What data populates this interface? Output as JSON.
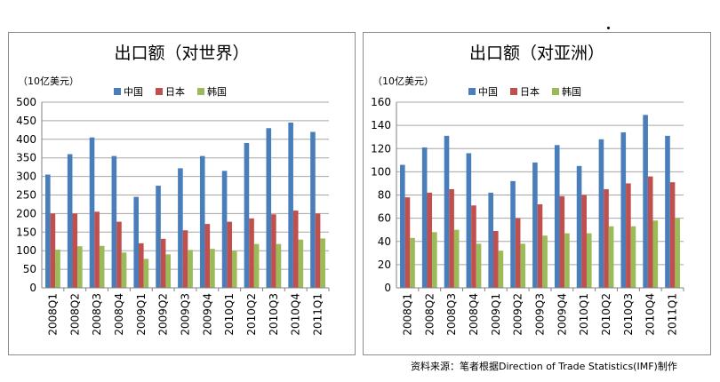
{
  "colors": {
    "china": "#4a7ebb",
    "japan": "#c0504d",
    "korea": "#9bbb59"
  },
  "legend": [
    "中国",
    "日本",
    "韩国"
  ],
  "unit": "（10亿美元）",
  "source": "资料来源：笔者根据Direction of Trade Statistics(IMF)制作",
  "chart_data": [
    {
      "type": "bar",
      "title": "出口额（对世界）",
      "categories": [
        "2008Q1",
        "2008Q2",
        "2008Q3",
        "2008Q4",
        "2009Q1",
        "2009Q2",
        "2009Q3",
        "2009Q4",
        "2010Q1",
        "2010Q2",
        "2010Q3",
        "2010Q4",
        "2011Q1"
      ],
      "ylim": [
        0,
        500
      ],
      "yticks": [
        0,
        50,
        100,
        150,
        200,
        250,
        300,
        350,
        400,
        450,
        500
      ],
      "grid": true,
      "legend_position": "top",
      "series": [
        {
          "name": "中国",
          "values": [
            305,
            360,
            405,
            355,
            245,
            275,
            322,
            355,
            315,
            390,
            430,
            445,
            420
          ]
        },
        {
          "name": "日本",
          "values": [
            200,
            200,
            205,
            178,
            120,
            132,
            155,
            172,
            178,
            187,
            198,
            208,
            200
          ]
        },
        {
          "name": "韩国",
          "values": [
            103,
            112,
            113,
            95,
            78,
            90,
            102,
            105,
            100,
            118,
            118,
            130,
            133
          ]
        }
      ]
    },
    {
      "type": "bar",
      "title": "出口额（对亚洲）",
      "categories": [
        "2008Q1",
        "2008Q2",
        "2008Q3",
        "2008Q4",
        "2009Q1",
        "2009Q2",
        "2009Q3",
        "2009Q4",
        "2010Q1",
        "2010Q2",
        "2010Q3",
        "2010Q4",
        "2011Q1"
      ],
      "ylim": [
        0,
        160
      ],
      "yticks": [
        0,
        20,
        40,
        60,
        80,
        100,
        120,
        140,
        160
      ],
      "grid": true,
      "legend_position": "top",
      "series": [
        {
          "name": "中国",
          "values": [
            106,
            121,
            131,
            116,
            82,
            92,
            108,
            123,
            105,
            128,
            134,
            149,
            131
          ]
        },
        {
          "name": "日本",
          "values": [
            78,
            82,
            85,
            71,
            49,
            60,
            72,
            79,
            80,
            85,
            90,
            96,
            91
          ]
        },
        {
          "name": "韩国",
          "values": [
            43,
            48,
            50,
            38,
            32,
            38,
            45,
            47,
            47,
            53,
            53,
            58,
            60
          ]
        }
      ]
    }
  ]
}
